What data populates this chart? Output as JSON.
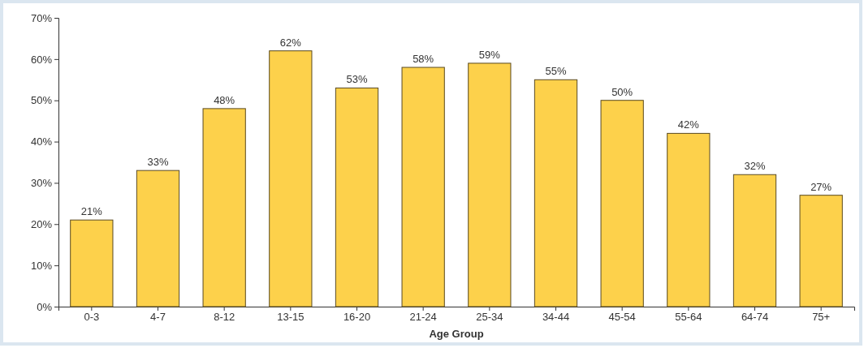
{
  "chart_data": {
    "type": "bar",
    "xlabel": "Age Group",
    "categories": [
      "0-3",
      "4-7",
      "8-12",
      "13-15",
      "16-20",
      "21-24",
      "25-34",
      "34-44",
      "45-54",
      "55-64",
      "64-74",
      "75+"
    ],
    "values": [
      21,
      33,
      48,
      62,
      53,
      58,
      59,
      55,
      50,
      42,
      32,
      27
    ],
    "value_labels": [
      "21%",
      "33%",
      "48%",
      "62%",
      "53%",
      "58%",
      "59%",
      "55%",
      "50%",
      "42%",
      "32%",
      "27%"
    ],
    "color": "#fdd14b",
    "ylim": [
      0,
      70
    ],
    "yticks": [
      {
        "value": 0,
        "label": "0%"
      },
      {
        "value": 10,
        "label": "10%"
      },
      {
        "value": 20,
        "label": "20%"
      },
      {
        "value": 30,
        "label": "30%"
      },
      {
        "value": 40,
        "label": "40%"
      },
      {
        "value": 50,
        "label": "50%"
      },
      {
        "value": 60,
        "label": "60%"
      },
      {
        "value": 70,
        "label": "70%"
      }
    ]
  }
}
